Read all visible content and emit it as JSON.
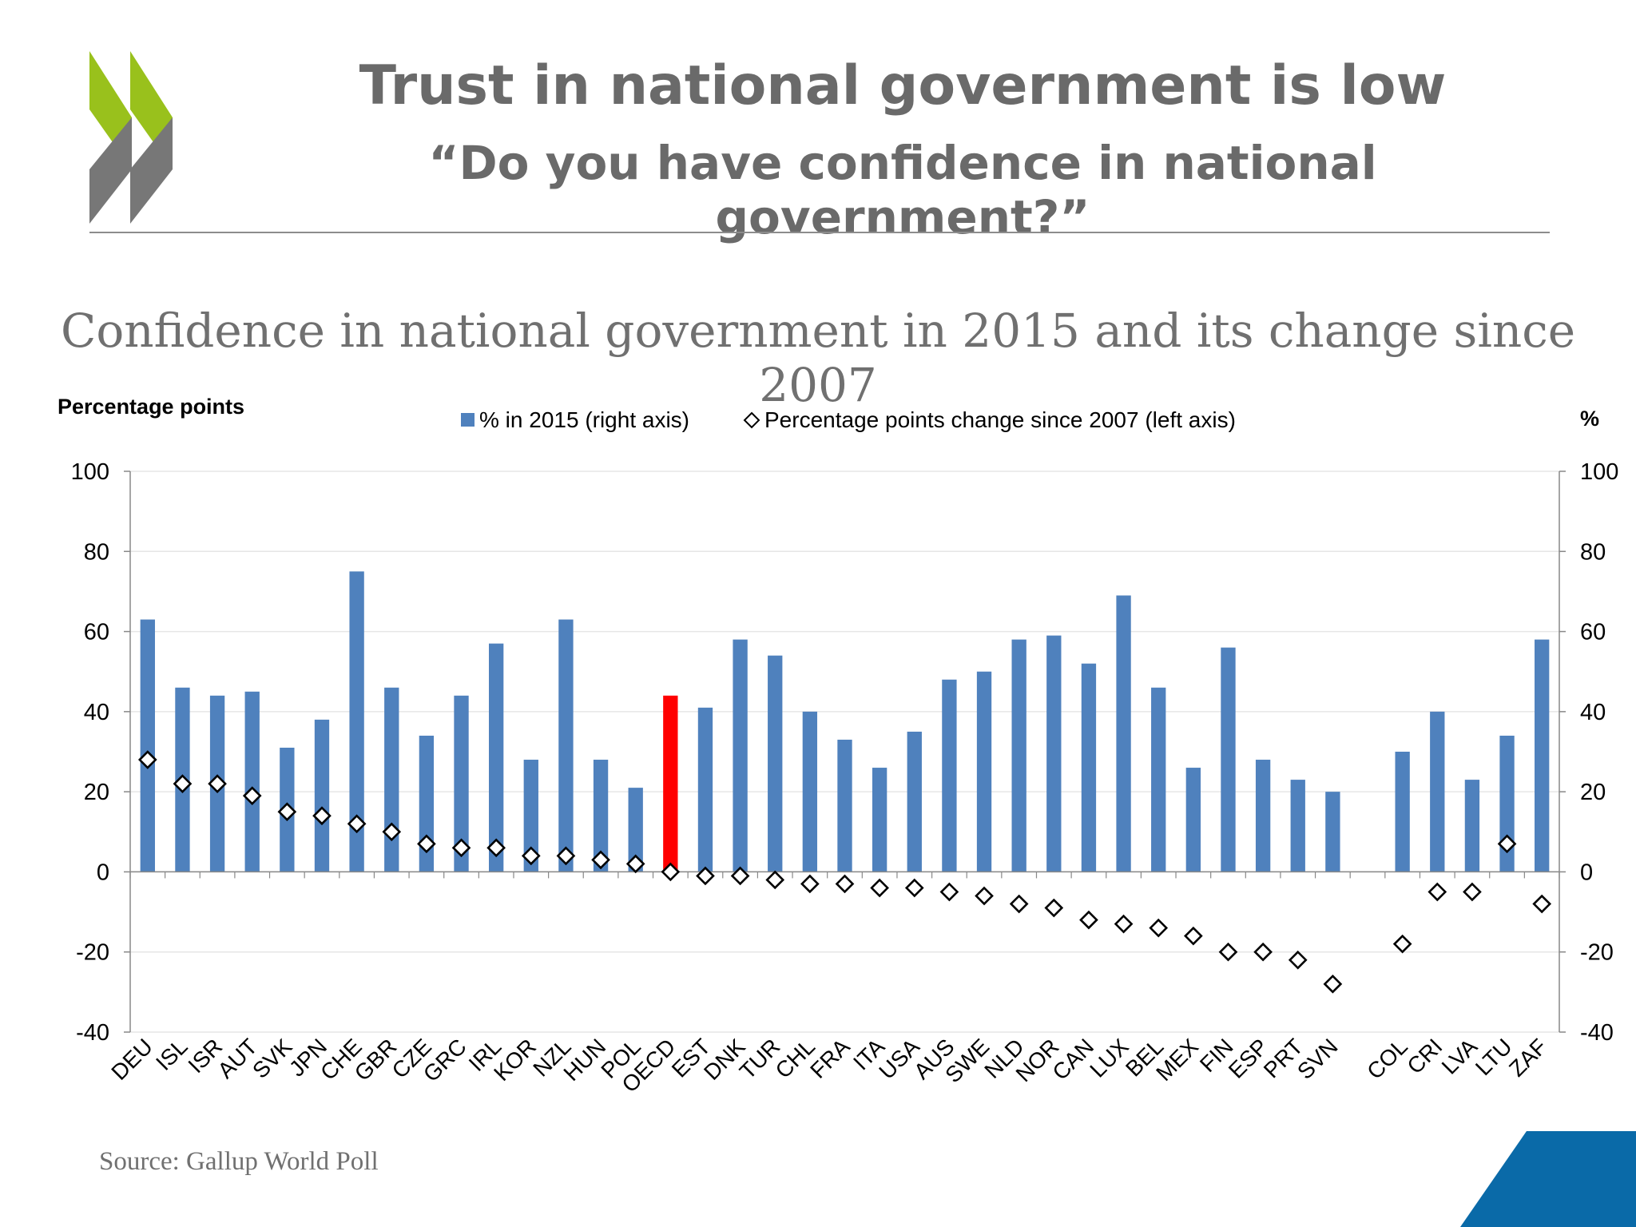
{
  "header": {
    "title": "Trust in national government is low",
    "subtitle": "“Do you have confidence in national government?”"
  },
  "footer": {
    "source": "Source: Gallup World Poll"
  },
  "colors": {
    "bar": "#4f81bd",
    "highlight_bar": "#ff0000",
    "logo_green": "#99c11c",
    "logo_grey": "#777777",
    "corner_blue": "#0a6aa8"
  },
  "chart_data": {
    "type": "bar",
    "title": "Confidence in national government in 2015 and its change since 2007",
    "left_axis_label": "Percentage points",
    "right_axis_label": "%",
    "ylim": [
      -40,
      100
    ],
    "yticks": [
      -40,
      -20,
      0,
      20,
      40,
      60,
      80,
      100
    ],
    "grid": true,
    "legend_position": "top-center",
    "highlight_category": "OECD",
    "categories": [
      "DEU",
      "ISL",
      "ISR",
      "AUT",
      "SVK",
      "JPN",
      "CHE",
      "GBR",
      "CZE",
      "GRC",
      "IRL",
      "KOR",
      "NZL",
      "HUN",
      "POL",
      "OECD",
      "EST",
      "DNK",
      "TUR",
      "CHL",
      "FRA",
      "ITA",
      "USA",
      "AUS",
      "SWE",
      "NLD",
      "NOR",
      "CAN",
      "LUX",
      "BEL",
      "MEX",
      "FIN",
      "ESP",
      "PRT",
      "SVN",
      "",
      "COL",
      "CRI",
      "LVA",
      "LTU",
      "ZAF"
    ],
    "series": [
      {
        "name": "% in 2015 (right axis)",
        "kind": "bar",
        "axis": "right",
        "values": [
          63,
          46,
          44,
          45,
          31,
          38,
          75,
          46,
          34,
          44,
          57,
          28,
          63,
          28,
          21,
          44,
          41,
          58,
          54,
          40,
          33,
          26,
          35,
          48,
          50,
          58,
          59,
          52,
          69,
          46,
          26,
          56,
          28,
          23,
          20,
          null,
          30,
          40,
          23,
          34,
          58
        ]
      },
      {
        "name": "Percentage points change since 2007 (left axis)",
        "kind": "marker",
        "axis": "left",
        "values": [
          28,
          22,
          22,
          19,
          15,
          14,
          12,
          10,
          7,
          6,
          6,
          4,
          4,
          3,
          2,
          0,
          -1,
          -1,
          -2,
          -3,
          -3,
          -4,
          -4,
          -5,
          -6,
          -8,
          -9,
          -12,
          -13,
          -14,
          -16,
          -20,
          -20,
          -22,
          -28,
          null,
          -18,
          -5,
          -5,
          7,
          -8
        ]
      }
    ]
  }
}
